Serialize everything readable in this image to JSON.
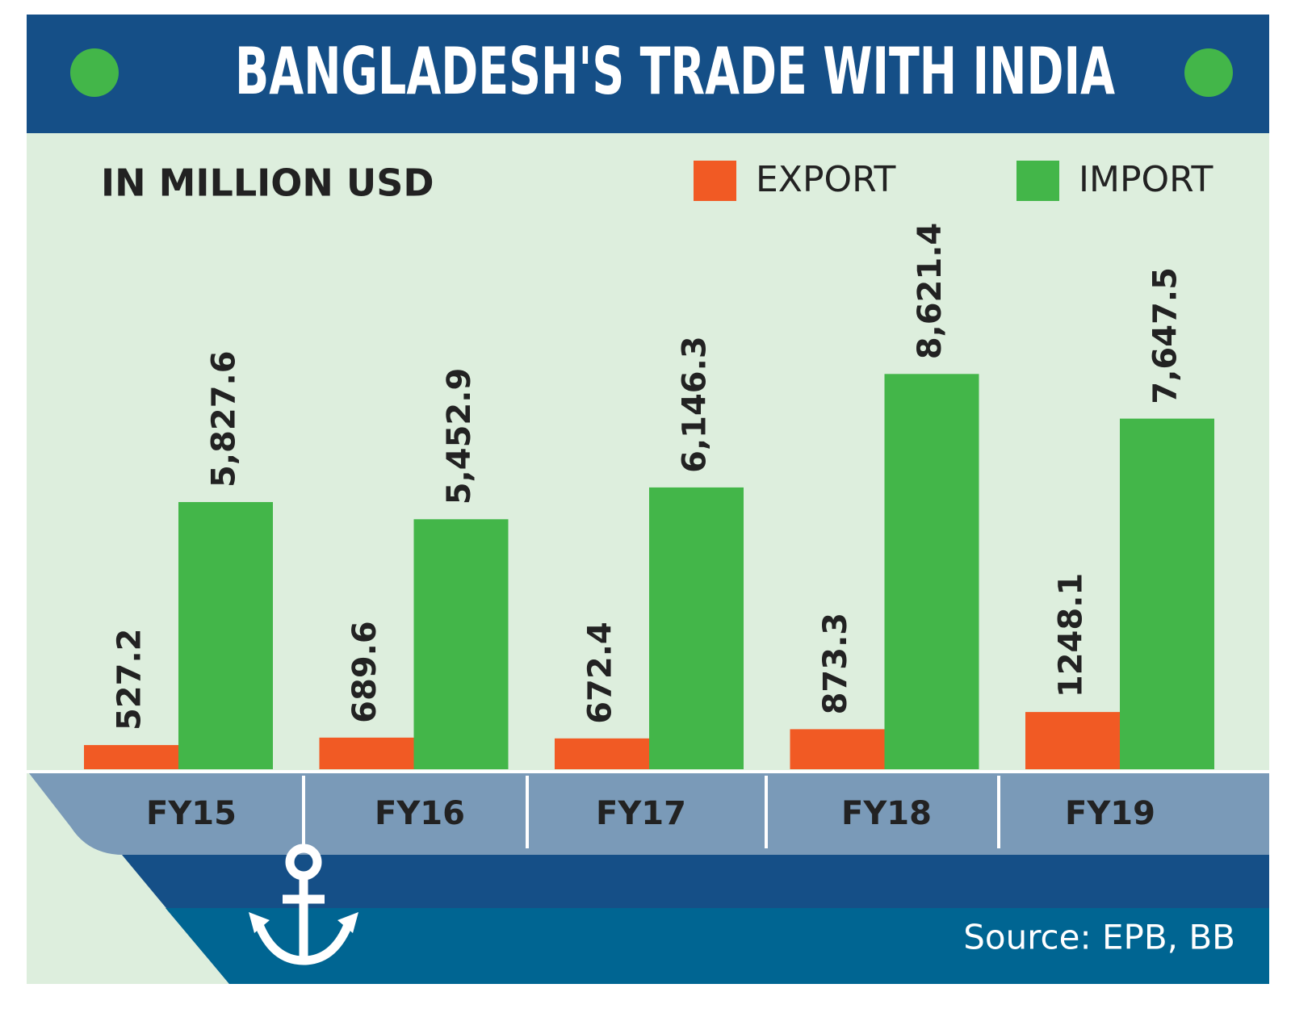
{
  "chart_data": {
    "type": "bar",
    "title": "BANGLADESH'S TRADE WITH INDIA",
    "subtitle": "IN MILLION USD",
    "source": "Source: EPB, BB",
    "categories": [
      "FY15",
      "FY16",
      "FY17",
      "FY18",
      "FY19"
    ],
    "series": [
      {
        "name": "EXPORT",
        "color": "#f15a24",
        "values": [
          527.2,
          689.6,
          672.4,
          873.3,
          1248.1
        ]
      },
      {
        "name": "IMPORT",
        "color": "#43b649",
        "values": [
          5827.6,
          5452.9,
          6146.3,
          8621.4,
          7647.5
        ],
        "value_labels": [
          "5,827.6",
          "5,452.9",
          "6,146.3",
          "8,621.4",
          "7,647.5"
        ]
      }
    ]
  }
}
